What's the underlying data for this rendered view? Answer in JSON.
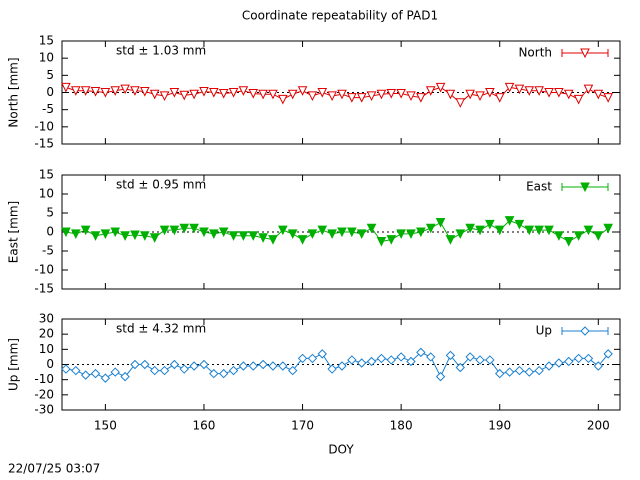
{
  "title": "Coordinate repeatability of PAD1",
  "timestamp": "22/07/25 03:07",
  "chart_data": [
    {
      "type": "line",
      "ylabel": "North [mm]",
      "annotation": "std ± 1.03 mm",
      "xlim": [
        145.6,
        202.2
      ],
      "ylim": [
        -15,
        15
      ],
      "yticks": [
        -15,
        -10,
        -5,
        0,
        5,
        10,
        15
      ],
      "marker": "triangle-down-open",
      "x": [
        146,
        147,
        148,
        149,
        150,
        151,
        152,
        153,
        154,
        155,
        156,
        157,
        158,
        159,
        160,
        161,
        162,
        163,
        164,
        165,
        166,
        167,
        168,
        169,
        170,
        171,
        172,
        173,
        174,
        175,
        176,
        177,
        178,
        179,
        180,
        181,
        182,
        183,
        184,
        185,
        186,
        187,
        188,
        189,
        190,
        191,
        192,
        193,
        194,
        195,
        196,
        197,
        198,
        199,
        200,
        201
      ],
      "series": [
        {
          "name": "North",
          "color": "#e00000",
          "values": [
            1.5,
            0.5,
            0.5,
            0.3,
            0,
            0.5,
            1,
            0.5,
            0.3,
            -0.5,
            -1,
            0,
            -0.8,
            -0.5,
            0.3,
            0,
            -0.3,
            0,
            0.5,
            -0.3,
            -0.5,
            -0.5,
            -2,
            -0.5,
            0.5,
            -1,
            0,
            -1,
            -0.5,
            -1.5,
            -1.5,
            -1,
            -0.5,
            -0.3,
            -0.3,
            -1,
            -1.5,
            0.5,
            1.5,
            -0.5,
            -3,
            -0.5,
            -1,
            0,
            -1.5,
            1.5,
            1,
            0.5,
            0.5,
            0,
            0,
            -0.5,
            -2,
            1,
            -0.5,
            -1.5
          ]
        }
      ]
    },
    {
      "type": "line",
      "ylabel": "East [mm]",
      "annotation": "std ± 0.95 mm",
      "xlim": [
        145.6,
        202.2
      ],
      "ylim": [
        -15,
        15
      ],
      "yticks": [
        -15,
        -10,
        -5,
        0,
        5,
        10,
        15
      ],
      "marker": "triangle-down",
      "x": [
        146,
        147,
        148,
        149,
        150,
        151,
        152,
        153,
        154,
        155,
        156,
        157,
        158,
        159,
        160,
        161,
        162,
        163,
        164,
        165,
        166,
        167,
        168,
        169,
        170,
        171,
        172,
        173,
        174,
        175,
        176,
        177,
        178,
        179,
        180,
        181,
        182,
        183,
        184,
        185,
        186,
        187,
        188,
        189,
        190,
        191,
        192,
        193,
        194,
        195,
        196,
        197,
        198,
        199,
        200,
        201
      ],
      "series": [
        {
          "name": "East",
          "color": "#00b000",
          "values": [
            0,
            -0.5,
            0.5,
            -1,
            -0.5,
            0,
            -1,
            -0.8,
            -1,
            -1.5,
            0.5,
            0.5,
            1,
            1,
            0,
            -0.5,
            0,
            -1,
            -1,
            -1,
            -1.5,
            -2,
            0.5,
            -0.5,
            -2,
            -0.5,
            0.5,
            -0.5,
            0,
            0,
            -0.5,
            1,
            -2.5,
            -2,
            -0.5,
            -0.5,
            0,
            1,
            2.5,
            -2,
            -0.5,
            1,
            0.5,
            2,
            0.5,
            3,
            2,
            0.5,
            0.5,
            0.5,
            -1,
            -2.5,
            -1,
            0.5,
            -1,
            1
          ]
        }
      ]
    },
    {
      "type": "line",
      "ylabel": "Up [mm]",
      "annotation": "std ± 4.32 mm",
      "xlabel": "DOY",
      "xlim": [
        145.6,
        202.2
      ],
      "xticks": [
        150,
        160,
        170,
        180,
        190,
        200
      ],
      "ylim": [
        -30,
        30
      ],
      "yticks": [
        -30,
        -20,
        -10,
        0,
        10,
        20,
        30
      ],
      "marker": "diamond-open",
      "x": [
        146,
        147,
        148,
        149,
        150,
        151,
        152,
        153,
        154,
        155,
        156,
        157,
        158,
        159,
        160,
        161,
        162,
        163,
        164,
        165,
        166,
        167,
        168,
        169,
        170,
        171,
        172,
        173,
        174,
        175,
        176,
        177,
        178,
        179,
        180,
        181,
        182,
        183,
        184,
        185,
        186,
        187,
        188,
        189,
        190,
        191,
        192,
        193,
        194,
        195,
        196,
        197,
        198,
        199,
        200,
        201
      ],
      "series": [
        {
          "name": "Up",
          "color": "#1a80d0",
          "values": [
            -3,
            -4,
            -7,
            -6,
            -9,
            -5,
            -8,
            0,
            0,
            -4,
            -4,
            0,
            -3,
            -1,
            0,
            -6,
            -6,
            -4,
            -1,
            -1,
            0,
            -1,
            -1,
            -4,
            4,
            4,
            7,
            -3,
            -1,
            3,
            1,
            2,
            4,
            3,
            5,
            2,
            8,
            5,
            -8,
            6,
            -2,
            5,
            3,
            3,
            -6,
            -5,
            -4,
            -5,
            -4,
            -1,
            1,
            2,
            4,
            4,
            -1,
            7
          ]
        }
      ]
    }
  ]
}
